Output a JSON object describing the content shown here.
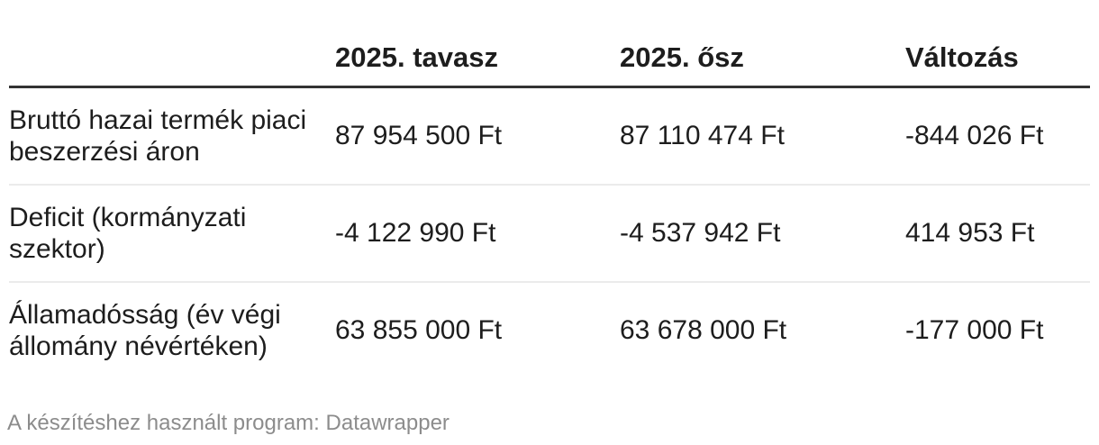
{
  "chart_data": {
    "type": "table",
    "columns": [
      "",
      "2025. tavasz",
      "2025. ősz",
      "Változás"
    ],
    "rows": [
      [
        "Bruttó hazai termék piaci beszerzési áron",
        "87 954 500 Ft",
        "87 110 474 Ft",
        "-844 026 Ft"
      ],
      [
        "Deficit (kormányzati szektor)",
        "-4 122 990 Ft",
        "-4 537 942 Ft",
        "414 953 Ft"
      ],
      [
        "Államadósság (év végi állomány névértéken)",
        "63 855 000 Ft",
        "63 678 000 Ft",
        "-177 000 Ft"
      ]
    ],
    "unit": "Ft",
    "layout": {
      "header_border_color": "#333333",
      "row_border_color": "#ebebeb",
      "text_color": "#1d1d1d",
      "footer_color": "#8c8c8c",
      "grid": "horizontal-only",
      "value_alignment": "left"
    }
  },
  "footer": {
    "attribution": "A készítéshez használt program: Datawrapper"
  }
}
